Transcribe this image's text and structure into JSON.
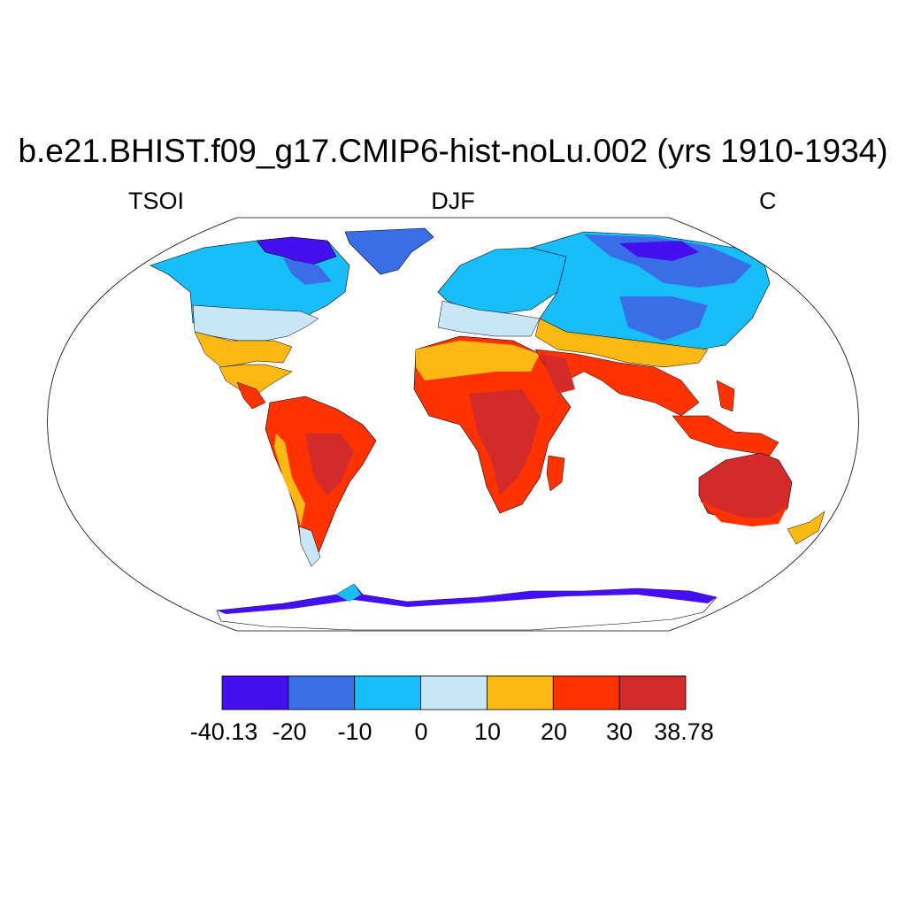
{
  "title": "b.e21.BHIST.f09_g17.CMIP6-hist-noLu.002 (yrs 1910-1934)",
  "left_string": "TSOI",
  "center_string": "DJF",
  "right_string": "C",
  "colorbar": {
    "tick_labels": [
      "-40.13",
      "-20",
      "-10",
      "0",
      "10",
      "20",
      "30",
      "38.78"
    ],
    "bins": [
      {
        "from": -40.13,
        "to": -20,
        "color": "#4410F0"
      },
      {
        "from": -20,
        "to": -10,
        "color": "#3A6EE6"
      },
      {
        "from": -10,
        "to": 0,
        "color": "#17BEF9"
      },
      {
        "from": 0,
        "to": 10,
        "color": "#C8E6F6"
      },
      {
        "from": 10,
        "to": 20,
        "color": "#FDB913"
      },
      {
        "from": 20,
        "to": 30,
        "color": "#FF3300"
      },
      {
        "from": 30,
        "to": 38.78,
        "color": "#D42A2A"
      }
    ]
  },
  "colors": {
    "very_cold": "#4410F0",
    "cold": "#3A6EE6",
    "cool": "#17BEF9",
    "mild": "#C8E6F6",
    "warm": "#FDB913",
    "hot": "#FF3300",
    "very_hot": "#D42A2A",
    "outline": "#000000",
    "ocean": "#FFFFFF"
  }
}
